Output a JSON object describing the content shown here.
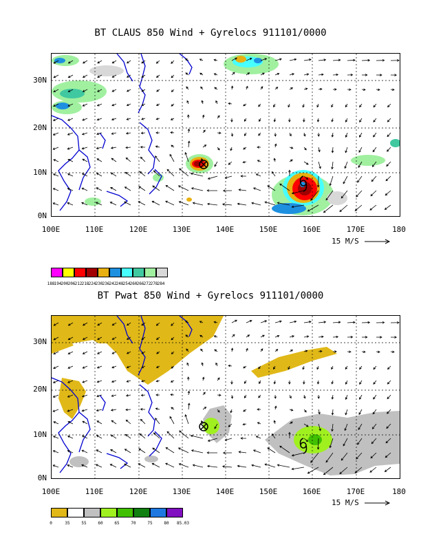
{
  "panels": [
    {
      "title": "BT CLAUS 850 Wind + Gyrelocs 911101/0000",
      "lat_labels": [
        "30N",
        "20N",
        "10N",
        "0N"
      ],
      "lon_labels": [
        "100E",
        "110E",
        "120E",
        "130E",
        "140E",
        "150E",
        "160E",
        "170E",
        "180"
      ],
      "ref_vector": "15 M/S",
      "colorbar_labels": [
        "188",
        "194",
        "200",
        "206",
        "212",
        "218",
        "224",
        "230",
        "236",
        "242",
        "248",
        "254",
        "260",
        "266",
        "272",
        "278",
        "284"
      ],
      "colorbar_colors": [
        "#ff00ff",
        "#ffff00",
        "#ff0000",
        "#a00000",
        "#e8b010",
        "#1e90e0",
        "#48ffff",
        "#40c8a0",
        "#a0f0a0",
        "#d8d8d8"
      ]
    },
    {
      "title": "BT Pwat 850 Wind + Gyrelocs 911101/0000",
      "lat_labels": [
        "30N",
        "20N",
        "10N",
        "0N"
      ],
      "lon_labels": [
        "100E",
        "110E",
        "120E",
        "130E",
        "140E",
        "150E",
        "160E",
        "170E",
        "180"
      ],
      "ref_vector": "15 M/S",
      "colorbar_labels": [
        "0",
        "35",
        "55",
        "60",
        "65",
        "70",
        "75",
        "80",
        "85.03"
      ],
      "colorbar_colors": [
        "#e0b818",
        "#ffffff",
        "#c0c0c0",
        "#a0f020",
        "#40c000",
        "#108010",
        "#1e78e0",
        "#8010c0"
      ]
    }
  ]
}
